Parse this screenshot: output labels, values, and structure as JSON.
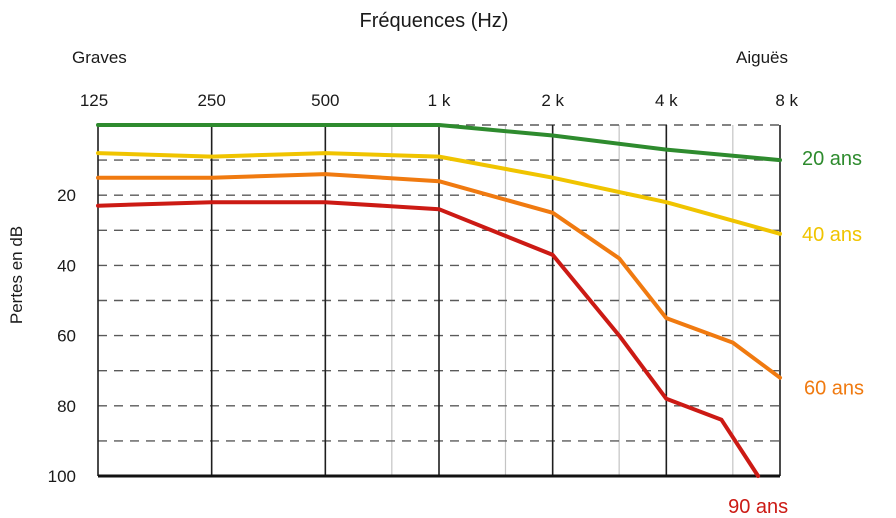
{
  "chart_data": {
    "type": "line",
    "title": "Fréquences (Hz)",
    "xlabel": "Fréquences (Hz)",
    "ylabel": "Pertes en dB",
    "x_end_labels": {
      "left": "Graves",
      "right": "Aiguës"
    },
    "x_scale": "log2",
    "xlim": [
      125,
      8000
    ],
    "ylim": [
      0,
      100
    ],
    "y_inverted": true,
    "grid": true,
    "x_ticks": [
      {
        "value": 125,
        "label": "125"
      },
      {
        "value": 250,
        "label": "250"
      },
      {
        "value": 500,
        "label": "500"
      },
      {
        "value": 1000,
        "label": "1 k"
      },
      {
        "value": 2000,
        "label": "2 k"
      },
      {
        "value": 4000,
        "label": "4 k"
      },
      {
        "value": 8000,
        "label": "8 k"
      }
    ],
    "x_minor_grid": [
      750,
      1500,
      3000,
      6000
    ],
    "y_ticks": [
      {
        "value": 20,
        "label": "20"
      },
      {
        "value": 40,
        "label": "40"
      },
      {
        "value": 60,
        "label": "60"
      },
      {
        "value": 80,
        "label": "80"
      },
      {
        "value": 100,
        "label": "100"
      }
    ],
    "y_minor_grid": [
      0,
      10,
      30,
      50,
      70,
      90
    ],
    "series": [
      {
        "name": "20 ans",
        "color": "#2e8b2e",
        "points": [
          [
            125,
            0
          ],
          [
            250,
            0
          ],
          [
            500,
            0
          ],
          [
            1000,
            0
          ],
          [
            2000,
            3
          ],
          [
            4000,
            7
          ],
          [
            8000,
            10
          ]
        ]
      },
      {
        "name": "40 ans",
        "color": "#f0c400",
        "points": [
          [
            125,
            8
          ],
          [
            250,
            9
          ],
          [
            500,
            8
          ],
          [
            1000,
            9
          ],
          [
            2000,
            15
          ],
          [
            4000,
            22
          ],
          [
            8000,
            31
          ]
        ]
      },
      {
        "name": "60 ans",
        "color": "#f07a10",
        "points": [
          [
            125,
            15
          ],
          [
            250,
            15
          ],
          [
            500,
            14
          ],
          [
            1000,
            16
          ],
          [
            2000,
            25
          ],
          [
            3000,
            38
          ],
          [
            4000,
            55
          ],
          [
            6000,
            62
          ],
          [
            8000,
            72
          ]
        ]
      },
      {
        "name": "90 ans",
        "color": "#cc1a14",
        "points": [
          [
            125,
            23
          ],
          [
            250,
            22
          ],
          [
            500,
            22
          ],
          [
            1000,
            24
          ],
          [
            2000,
            37
          ],
          [
            3000,
            60
          ],
          [
            4000,
            78
          ],
          [
            5600,
            84
          ],
          [
            7000,
            100
          ]
        ]
      }
    ]
  }
}
